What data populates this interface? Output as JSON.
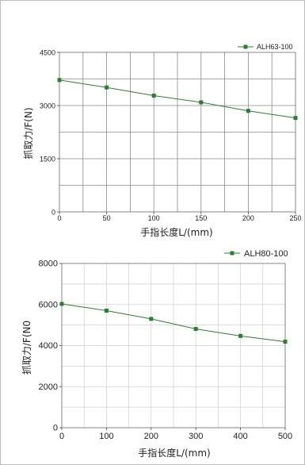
{
  "chart_data": [
    {
      "type": "line",
      "x": [
        0,
        50,
        100,
        150,
        200,
        250
      ],
      "series": [
        {
          "name": "ALH63-100",
          "values": [
            3720,
            3510,
            3280,
            3090,
            2850,
            2650
          ],
          "color": "#2e7d32"
        }
      ],
      "xticks": [
        "0",
        "50",
        "100",
        "150",
        "200",
        "250"
      ],
      "yticks": [
        "0",
        "1500",
        "3000",
        "4500"
      ],
      "xlabel": "手指长度L/(mm)",
      "ylabel": "抓取力/F(N)",
      "xlim": [
        0,
        250
      ],
      "ylim": [
        0,
        4500
      ],
      "grid": true,
      "legend": "top-right"
    },
    {
      "type": "line",
      "x": [
        0,
        100,
        200,
        300,
        400,
        500
      ],
      "series": [
        {
          "name": "ALH80-100",
          "values": [
            6030,
            5700,
            5300,
            4810,
            4470,
            4190
          ],
          "color": "#2e7d32"
        }
      ],
      "xticks": [
        "0",
        "100",
        "200",
        "300",
        "400",
        "500"
      ],
      "yticks": [
        "0",
        "2000",
        "4000",
        "6000",
        "8000"
      ],
      "xlabel": "手指长度L/(mm)",
      "ylabel": "抓取力/F(N0",
      "xlim": [
        0,
        500
      ],
      "ylim": [
        0,
        8000
      ],
      "grid": true,
      "legend": "top-right"
    }
  ]
}
